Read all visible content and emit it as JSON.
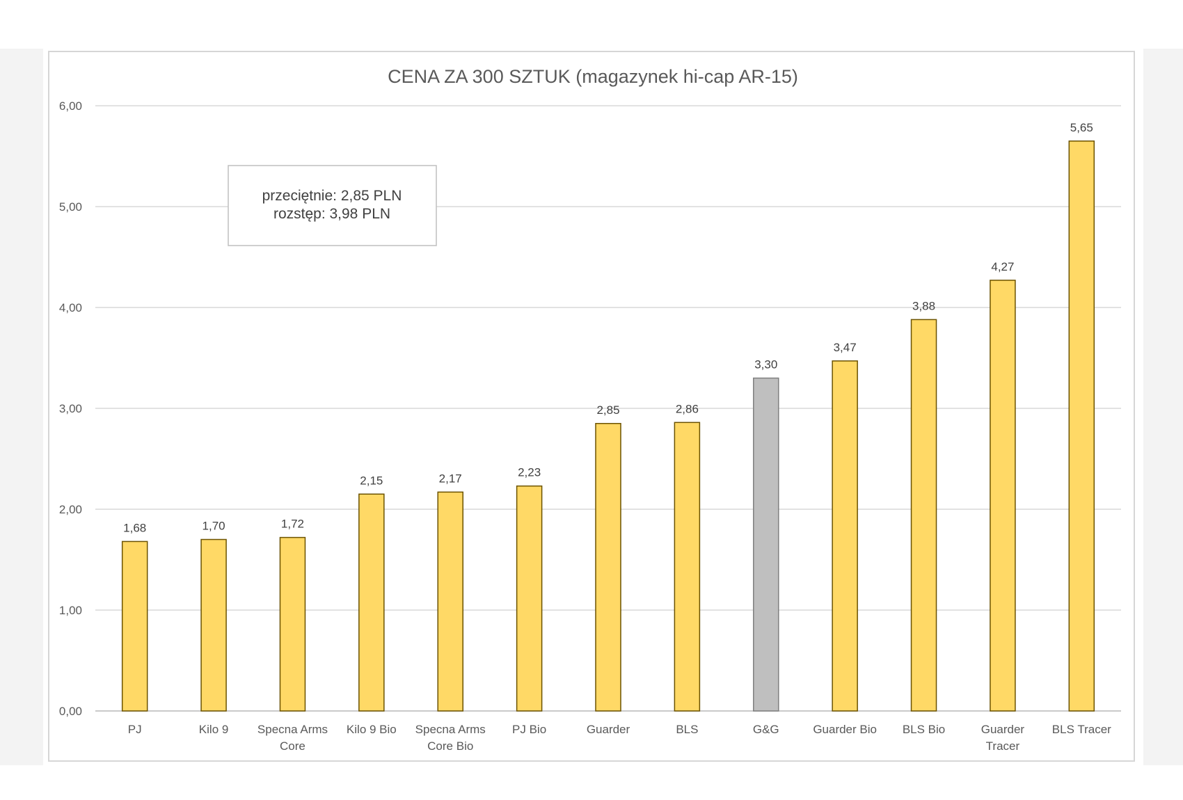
{
  "chart_data": {
    "type": "bar",
    "title": "CENA ZA 300 SZTUK (magazynek hi-cap AR-15)",
    "categories": [
      [
        "PJ"
      ],
      [
        "Kilo 9"
      ],
      [
        "Specna Arms",
        "Core"
      ],
      [
        "Kilo 9 Bio"
      ],
      [
        "Specna Arms",
        "Core Bio"
      ],
      [
        "PJ Bio"
      ],
      [
        "Guarder"
      ],
      [
        "BLS"
      ],
      [
        "G&G"
      ],
      [
        "Guarder Bio"
      ],
      [
        "BLS Bio"
      ],
      [
        "Guarder",
        "Tracer"
      ],
      [
        "BLS Tracer"
      ]
    ],
    "values": [
      1.68,
      1.7,
      1.72,
      2.15,
      2.17,
      2.23,
      2.85,
      2.86,
      3.3,
      3.47,
      3.88,
      4.27,
      5.65
    ],
    "data_labels": [
      "1,68",
      "1,70",
      "1,72",
      "2,15",
      "2,17",
      "2,23",
      "2,85",
      "2,86",
      "3,30",
      "3,47",
      "3,88",
      "4,27",
      "5,65"
    ],
    "highlight_index": 8,
    "ylim": [
      0,
      6
    ],
    "yticks": [
      0,
      1,
      2,
      3,
      4,
      5,
      6
    ],
    "ytick_labels": [
      "0,00",
      "1,00",
      "2,00",
      "3,00",
      "4,00",
      "5,00",
      "6,00"
    ],
    "xlabel": "",
    "ylabel": "",
    "grid": true,
    "legend": "none",
    "colors": {
      "bar_fill": "#FFD966",
      "bar_stroke": "#6b5200",
      "highlight_fill": "#BFBFBF",
      "highlight_stroke": "#7f7f7f"
    }
  },
  "annotation": {
    "line1": "przeciętnie: 2,85 PLN",
    "line2": "rozstęp: 3,98 PLN"
  }
}
